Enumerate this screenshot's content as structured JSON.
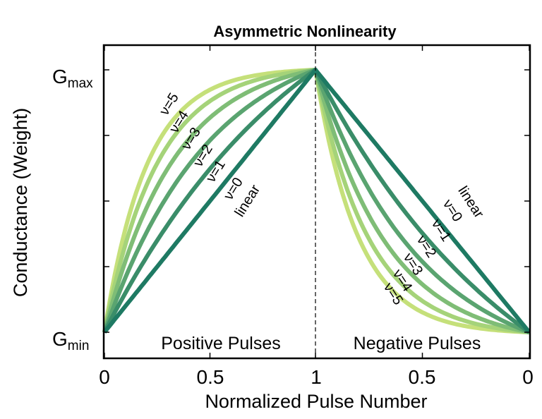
{
  "chart_data": {
    "type": "line",
    "title": "Asymmetric Nonlinearity",
    "xlabel": "Normalized Pulse Number",
    "ylabel": "Conductance (Weight)",
    "x_ticks": [
      "0",
      "0.5",
      "1",
      "0.5",
      "0"
    ],
    "y_ticks": [
      {
        "main": "G",
        "sub": "min"
      },
      {
        "main": "G",
        "sub": "max"
      }
    ],
    "regions": [
      "Positive Pulses",
      "Negative Pulses"
    ],
    "xlim": [
      0,
      2
    ],
    "ylim": [
      0,
      1
    ],
    "grid": false,
    "divider_x": 1,
    "series": [
      {
        "label": "ν=5",
        "nu": 5,
        "color": "#c5e07a"
      },
      {
        "label": "ν=4",
        "nu": 4,
        "color": "#a5d379"
      },
      {
        "label": "ν=3",
        "nu": 3,
        "color": "#7fbd76"
      },
      {
        "label": "ν=2",
        "nu": 2,
        "color": "#5aa470"
      },
      {
        "label": "ν=1",
        "nu": 1,
        "color": "#3a8d69"
      },
      {
        "label": "ν=0",
        "nu": 0,
        "color": "#1e7a63"
      }
    ],
    "linear_label": "linear"
  }
}
